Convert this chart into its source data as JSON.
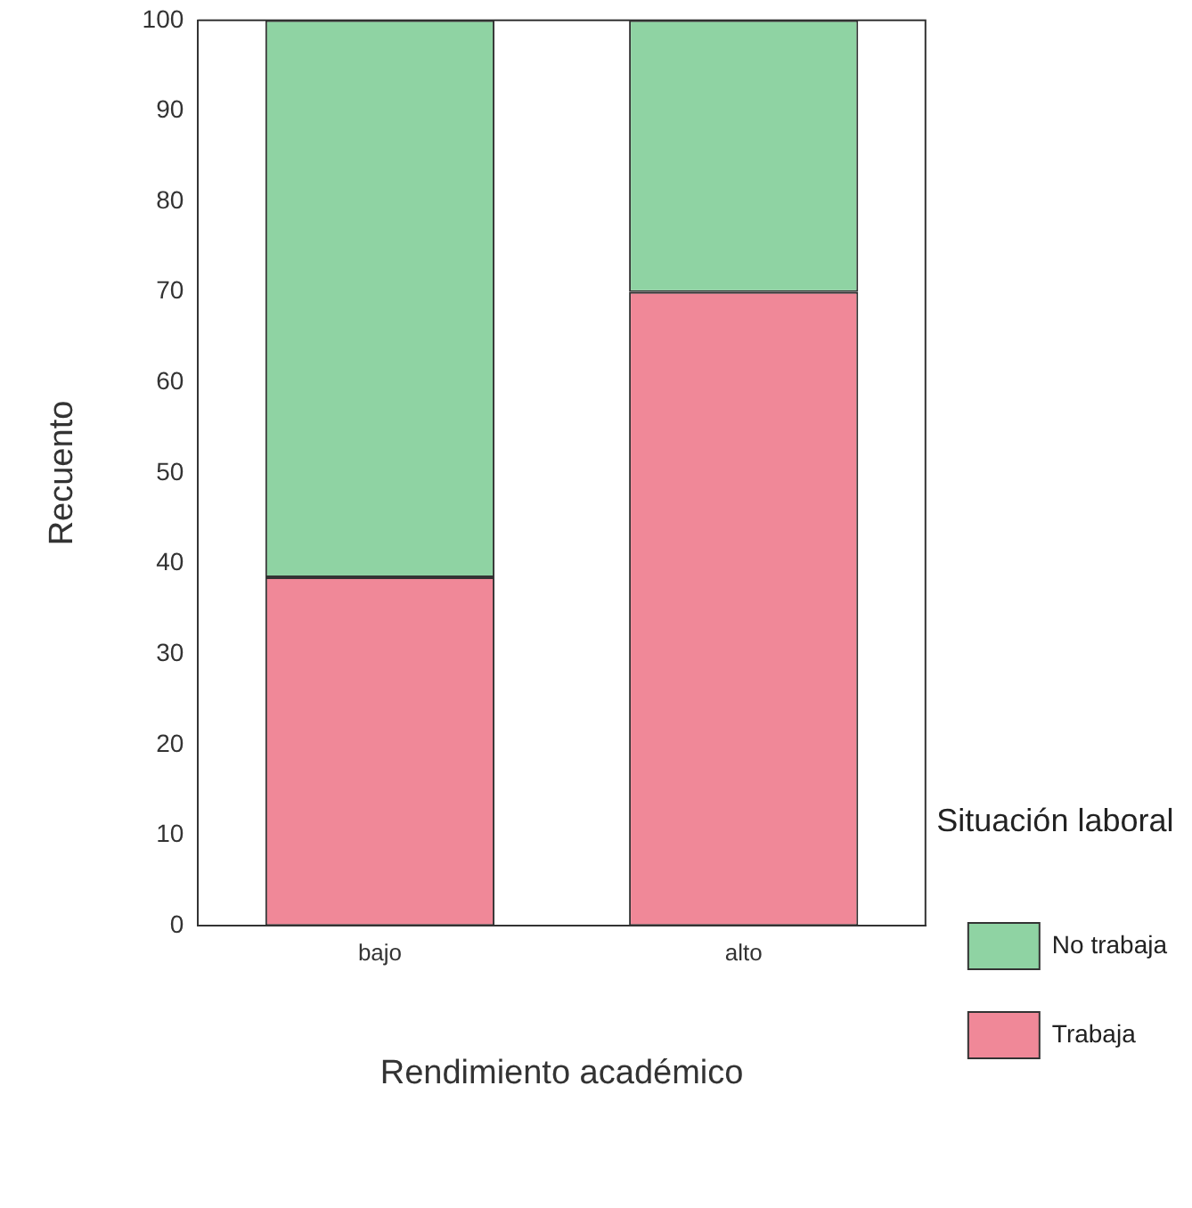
{
  "chart_data": {
    "type": "bar",
    "stacked": true,
    "xlabel": "Rendimiento académico",
    "ylabel": "Recuento",
    "legend_title": "Situación laboral",
    "legend": "right",
    "grid": false,
    "categories": [
      "bajo",
      "alto"
    ],
    "series": [
      {
        "name": "Trabaja",
        "color": "#f08898",
        "values": [
          38.5,
          70
        ]
      },
      {
        "name": "No trabaja",
        "color": "#8fd3a3",
        "values": [
          61.5,
          30
        ]
      }
    ],
    "ylim": [
      0,
      100
    ],
    "yticks": [
      0,
      10,
      20,
      30,
      40,
      50,
      60,
      70,
      80,
      90,
      100
    ]
  }
}
